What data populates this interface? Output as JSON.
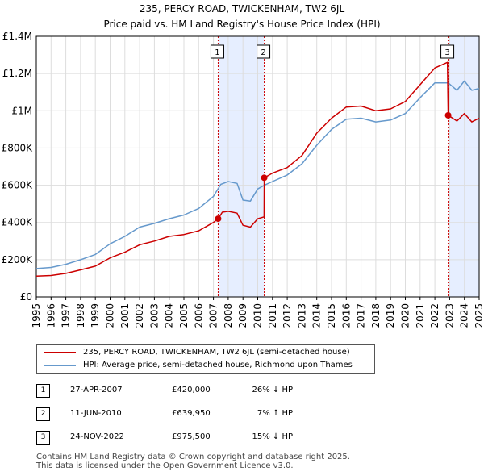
{
  "title": {
    "line1": "235, PERCY ROAD, TWICKENHAM, TW2 6JL",
    "line2": "Price paid vs. HM Land Registry's House Price Index (HPI)"
  },
  "colors": {
    "property": "#cc0000",
    "hpi": "#6699cc",
    "shade": "#e6eeff",
    "grid": "#dddddd",
    "marker_line": "#cc0000"
  },
  "chart_data": {
    "type": "line",
    "title": "Price paid vs. HM Land Registry's House Price Index (HPI)",
    "xlabel": "",
    "ylabel": "",
    "xlim": [
      1995,
      2025
    ],
    "ylim": [
      0,
      1400000
    ],
    "grid": true,
    "y_ticks": [
      {
        "value": 0,
        "label": "£0"
      },
      {
        "value": 200000,
        "label": "£200K"
      },
      {
        "value": 400000,
        "label": "£400K"
      },
      {
        "value": 600000,
        "label": "£600K"
      },
      {
        "value": 800000,
        "label": "£800K"
      },
      {
        "value": 1000000,
        "label": "£1M"
      },
      {
        "value": 1200000,
        "label": "£1.2M"
      },
      {
        "value": 1400000,
        "label": "£1.4M"
      }
    ],
    "x_ticks": [
      "1995",
      "1996",
      "1997",
      "1998",
      "1999",
      "2000",
      "2001",
      "2002",
      "2003",
      "2004",
      "2005",
      "2006",
      "2007",
      "2008",
      "2009",
      "2010",
      "2011",
      "2012",
      "2013",
      "2014",
      "2015",
      "2016",
      "2017",
      "2018",
      "2019",
      "2020",
      "2021",
      "2022",
      "2023",
      "2024",
      "2025"
    ],
    "shaded_regions": [
      [
        2007.32,
        2010.44
      ],
      [
        2022.9,
        2025
      ]
    ],
    "series": [
      {
        "name": "235, PERCY ROAD, TWICKENHAM, TW2 6JL (semi-detached house)",
        "color": "#cc0000",
        "points": [
          [
            1995,
            112000
          ],
          [
            1996,
            115000
          ],
          [
            1997,
            126000
          ],
          [
            1998,
            145000
          ],
          [
            1999,
            165000
          ],
          [
            2000,
            210000
          ],
          [
            2001,
            240000
          ],
          [
            2002,
            280000
          ],
          [
            2003,
            300000
          ],
          [
            2004,
            325000
          ],
          [
            2005,
            335000
          ],
          [
            2006,
            355000
          ],
          [
            2007,
            400000
          ],
          [
            2007.32,
            420000
          ],
          [
            2007.6,
            455000
          ],
          [
            2008,
            460000
          ],
          [
            2008.6,
            450000
          ],
          [
            2009,
            385000
          ],
          [
            2009.5,
            375000
          ],
          [
            2010,
            420000
          ],
          [
            2010.43,
            430000
          ],
          [
            2010.44,
            639950
          ],
          [
            2011,
            665000
          ],
          [
            2012,
            695000
          ],
          [
            2013,
            760000
          ],
          [
            2014,
            880000
          ],
          [
            2015,
            960000
          ],
          [
            2016,
            1020000
          ],
          [
            2017,
            1025000
          ],
          [
            2018,
            1000000
          ],
          [
            2019,
            1010000
          ],
          [
            2020,
            1050000
          ],
          [
            2021,
            1140000
          ],
          [
            2022,
            1230000
          ],
          [
            2022.85,
            1260000
          ],
          [
            2022.9,
            975500
          ],
          [
            2023.5,
            945000
          ],
          [
            2024,
            985000
          ],
          [
            2024.5,
            940000
          ],
          [
            2025,
            960000
          ]
        ]
      },
      {
        "name": "HPI: Average price, semi-detached house, Richmond upon Thames",
        "color": "#6699cc",
        "points": [
          [
            1995,
            152000
          ],
          [
            1996,
            158000
          ],
          [
            1997,
            175000
          ],
          [
            1998,
            200000
          ],
          [
            1999,
            228000
          ],
          [
            2000,
            285000
          ],
          [
            2001,
            325000
          ],
          [
            2002,
            375000
          ],
          [
            2003,
            395000
          ],
          [
            2004,
            420000
          ],
          [
            2005,
            440000
          ],
          [
            2006,
            475000
          ],
          [
            2007,
            540000
          ],
          [
            2007.5,
            605000
          ],
          [
            2008,
            620000
          ],
          [
            2008.6,
            610000
          ],
          [
            2009,
            520000
          ],
          [
            2009.5,
            515000
          ],
          [
            2010,
            580000
          ],
          [
            2010.44,
            600000
          ],
          [
            2011,
            620000
          ],
          [
            2012,
            655000
          ],
          [
            2013,
            715000
          ],
          [
            2014,
            815000
          ],
          [
            2015,
            900000
          ],
          [
            2016,
            955000
          ],
          [
            2017,
            960000
          ],
          [
            2018,
            940000
          ],
          [
            2019,
            950000
          ],
          [
            2020,
            985000
          ],
          [
            2021,
            1070000
          ],
          [
            2022,
            1150000
          ],
          [
            2022.9,
            1150000
          ],
          [
            2023.5,
            1110000
          ],
          [
            2024,
            1160000
          ],
          [
            2024.5,
            1110000
          ],
          [
            2025,
            1120000
          ]
        ]
      }
    ],
    "annotations": [
      {
        "label": "1",
        "x": 2007.32,
        "y": 420000
      },
      {
        "label": "2",
        "x": 2010.44,
        "y": 639950
      },
      {
        "label": "3",
        "x": 2022.9,
        "y": 975500
      }
    ]
  },
  "legend": {
    "property_label": "235, PERCY ROAD, TWICKENHAM, TW2 6JL (semi-detached house)",
    "hpi_label": "HPI: Average price, semi-detached house, Richmond upon Thames"
  },
  "sales": [
    {
      "num": "1",
      "date": "27-APR-2007",
      "price": "£420,000",
      "diff": "26% ↓ HPI"
    },
    {
      "num": "2",
      "date": "11-JUN-2010",
      "price": "£639,950",
      "diff": "7% ↑ HPI"
    },
    {
      "num": "3",
      "date": "24-NOV-2022",
      "price": "£975,500",
      "diff": "15% ↓ HPI"
    }
  ],
  "footer": {
    "line1": "Contains HM Land Registry data © Crown copyright and database right 2025.",
    "line2": "This data is licensed under the Open Government Licence v3.0."
  }
}
